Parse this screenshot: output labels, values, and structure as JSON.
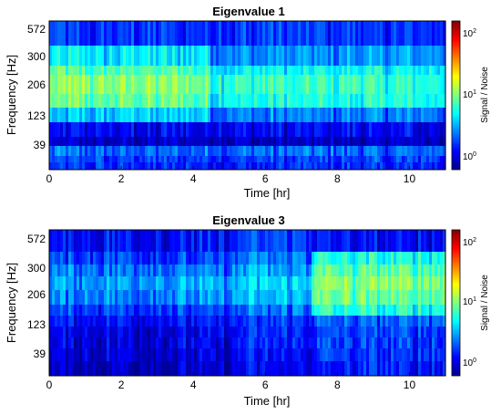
{
  "chart_data": [
    {
      "type": "heatmap",
      "title": "Eigenvalue 1",
      "xlabel": "Time [hr]",
      "ylabel": "Frequency [Hz]",
      "xlim": [
        0,
        11
      ],
      "x_ticks": [
        0,
        2,
        4,
        6,
        8,
        10
      ],
      "y_tick_labels": [
        "572",
        "300",
        "206",
        "123",
        "39"
      ],
      "colorbar": {
        "label": "Signal / Noise",
        "scale": "log",
        "ticks": [
          "10^0",
          "10^1",
          "10^2"
        ],
        "range": [
          0.6,
          150
        ],
        "colormap": "jet"
      },
      "bands_top_to_bottom": [
        {
          "name": "b1",
          "level": 1.5
        },
        {
          "name": "b2",
          "level": 3.5
        },
        {
          "name": "b3",
          "level": 6.0
        },
        {
          "name": "b4",
          "level": 8.0
        },
        {
          "name": "b5",
          "level": 7.0
        },
        {
          "name": "b6",
          "level": 3.0
        },
        {
          "name": "b7",
          "level": 1.1
        },
        {
          "name": "b8",
          "level": 0.8
        },
        {
          "name": "b9",
          "level": 2.0
        },
        {
          "name": "b10",
          "level": 1.6
        },
        {
          "name": "b11",
          "level": 1.4
        }
      ],
      "notes": "Higher S/N (green-yellow) in 200–400 Hz band during 0–4 hr; low S/N band near 100 Hz throughout"
    },
    {
      "type": "heatmap",
      "title": "Eigenvalue 3",
      "xlabel": "Time [hr]",
      "ylabel": "Frequency [Hz]",
      "xlim": [
        0,
        11
      ],
      "x_ticks": [
        0,
        2,
        4,
        6,
        8,
        10
      ],
      "y_tick_labels": [
        "572",
        "300",
        "206",
        "123",
        "39"
      ],
      "colorbar": {
        "label": "Signal / Noise",
        "scale": "log",
        "ticks": [
          "10^0",
          "10^1",
          "10^2"
        ],
        "range": [
          0.6,
          150
        ],
        "colormap": "jet"
      },
      "bands_top_to_bottom": [
        {
          "name": "b1",
          "level": 1.2
        },
        {
          "name": "b2",
          "level": 1.6
        },
        {
          "name": "b3",
          "level": 2.2
        },
        {
          "name": "b4",
          "level": 2.8
        },
        {
          "name": "b5",
          "level": 2.4
        },
        {
          "name": "b6",
          "level": 1.6
        },
        {
          "name": "b7",
          "level": 1.2
        },
        {
          "name": "b8",
          "level": 1.0
        },
        {
          "name": "b9",
          "level": 1.0
        },
        {
          "name": "b10",
          "level": 0.9
        },
        {
          "name": "b11",
          "level": 0.8
        }
      ],
      "notes": "Mostly low S/N (blue); elevated S/N (cyan-yellow) in 200–600 Hz after ~7.5 hr"
    }
  ]
}
